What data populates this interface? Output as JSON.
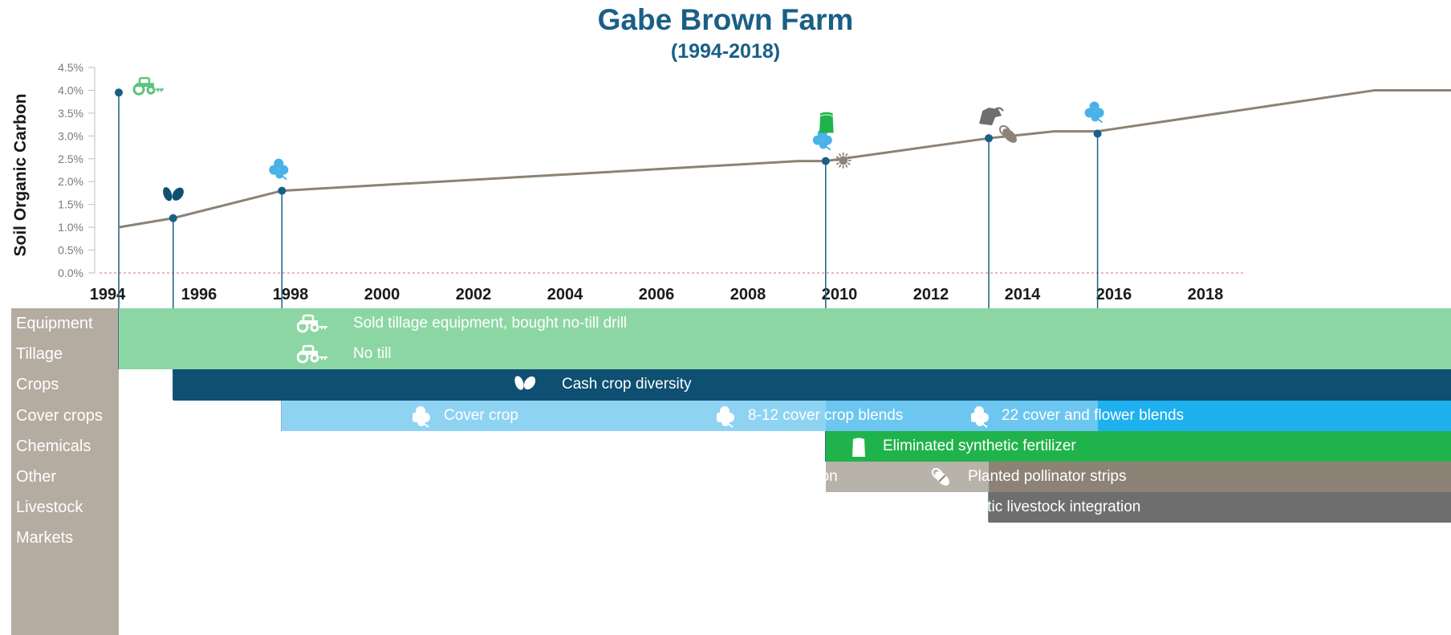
{
  "chart_data": {
    "type": "line",
    "title": "Gabe Brown Farm",
    "subtitle": "(1994-2018)",
    "ylabel": "Soil Organic Carbon",
    "xlabel": "",
    "ylim": [
      0,
      4.5
    ],
    "xlim": [
      1993.5,
      2018
    ],
    "yticks": [
      "0.0%",
      "0.5%",
      "1.0%",
      "1.5%",
      "2.0%",
      "2.5%",
      "3.0%",
      "3.5%",
      "4.0%",
      "4.5%"
    ],
    "xticks": [
      "1994",
      "1996",
      "1998",
      "2000",
      "2002",
      "2004",
      "2006",
      "2008",
      "2010",
      "2012",
      "2014",
      "2016",
      "2018"
    ],
    "series": [
      {
        "x": [
          1993.5,
          1994.5,
          1996.5,
          2006,
          2006.5,
          2009.5,
          2010.7,
          2011.5,
          2016.6,
          2018
        ],
        "values": [
          1.0,
          1.2,
          1.8,
          2.45,
          2.45,
          2.95,
          3.1,
          3.1,
          4.0,
          4.0
        ]
      }
    ],
    "events": [
      {
        "x": 1993.5,
        "y": 3.95,
        "icon": "tractor-icon"
      },
      {
        "x": 1994.5,
        "y": 1.2,
        "icon": "seeds-icon"
      },
      {
        "x": 1996.5,
        "y": 1.8,
        "icon": "clover-icon"
      },
      {
        "x": 2006.5,
        "y": 2.45,
        "icon": "clover-icon"
      },
      {
        "x": 2009.5,
        "y": 2.95,
        "icon": "cow-icon"
      },
      {
        "x": 2011.5,
        "y": 3.05,
        "icon": "clover-icon"
      }
    ],
    "rows": [
      "Equipment",
      "Tillage",
      "Crops",
      "Cover crops",
      "Chemicals",
      "Other",
      "Livestock",
      "Markets"
    ],
    "bars": [
      {
        "row": 0,
        "start": 1993.5,
        "end": 2018,
        "label": "Sold tillage equipment, bought no-till drill",
        "color": "#8cd6a4",
        "icon": "tractor-icon"
      },
      {
        "row": 1,
        "start": 1993.5,
        "end": 2018,
        "label": "No till",
        "color": "#8cd6a4",
        "icon": "tractor-icon"
      },
      {
        "row": 2,
        "start": 1994.5,
        "end": 2018,
        "label": "Cash crop diversity",
        "color": "#0f4f72",
        "icon": "seeds-icon"
      },
      {
        "row": 3,
        "start": 1996.5,
        "end": 2006.5,
        "label": "Cover crop",
        "color": "#8fd3f3",
        "icon": "clover-icon"
      },
      {
        "row": 3,
        "start": 2006.5,
        "end": 2011.5,
        "label": "8-12 cover crop blends",
        "color": "#6cc6f0",
        "icon": "clover-icon"
      },
      {
        "row": 3,
        "start": 2011.5,
        "end": 2018,
        "label": "22 cover and flower blends",
        "color": "#1eb0ef",
        "icon": "clover-icon"
      },
      {
        "row": 4,
        "start": 2006.5,
        "end": 2018,
        "label": "Eliminated synthetic fertilizer",
        "color": "#21b34b",
        "icon": "fertilizer-bag-icon"
      },
      {
        "row": 5,
        "start": 2006.5,
        "end": 2009.5,
        "label": "Extend season",
        "color": "#b7b2aa",
        "icon": "sun-icon"
      },
      {
        "row": 5,
        "start": 2009.5,
        "end": 2018,
        "label": "Planted pollinator strips",
        "color": "#8c8275",
        "icon": "bee-icon"
      },
      {
        "row": 6,
        "start": 2009.5,
        "end": 2018,
        "label": "Holistic livestock integration",
        "color": "#6e6e6e",
        "icon": "cow-icon"
      }
    ],
    "colors": {
      "line": "#8c8275",
      "marker": "#1a5f86",
      "title": "#1a5f86",
      "rowlabel_bg": "#b5aca1",
      "zero_line": "#e58a8a"
    },
    "grid": false,
    "legend": "none"
  }
}
